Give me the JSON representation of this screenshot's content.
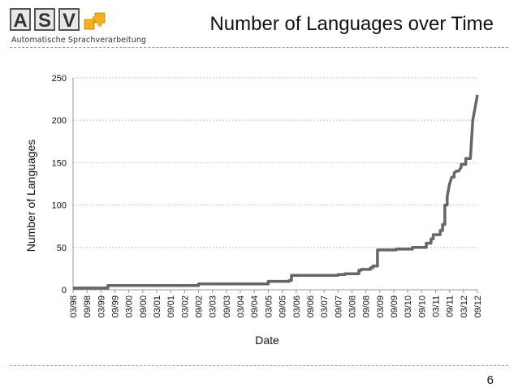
{
  "slide": {
    "title": "Number of Languages over Time",
    "page_number": "6",
    "logo": {
      "letters": [
        "A",
        "S",
        "V"
      ],
      "subtitle": "Automatische Sprachverarbeitung",
      "accent_color": "#f2b21f"
    }
  },
  "chart_data": {
    "type": "line",
    "title": "",
    "xlabel": "Date",
    "ylabel": "Number of Languages",
    "ylim": [
      0,
      250
    ],
    "y_ticks": [
      0,
      50,
      100,
      150,
      200,
      250
    ],
    "grid": true,
    "legend": "none",
    "line_color": "#666666",
    "x_tick_labels": [
      "03/98",
      "09/98",
      "03/99",
      "09/99",
      "03/00",
      "09/00",
      "03/01",
      "09/01",
      "03/02",
      "09/02",
      "03/03",
      "09/03",
      "03/04",
      "09/04",
      "03/05",
      "09/05",
      "03/06",
      "09/06",
      "03/07",
      "09/07",
      "03/08",
      "09/08",
      "03/09",
      "09/09",
      "03/10",
      "09/10",
      "03/11",
      "09/11",
      "03/12",
      "09/12"
    ],
    "series": [
      {
        "x": [
          "03/98",
          "06/99",
          "06/99",
          "09/02",
          "09/02",
          "03/05",
          "03/05",
          "12/05",
          "12/05",
          "01/06",
          "01/06",
          "09/07",
          "09/07",
          "12/07",
          "12/07",
          "06/08",
          "06/08",
          "07/08",
          "07/08",
          "11/08",
          "11/08",
          "12/08",
          "12/08",
          "02/09",
          "02/09",
          "10/09",
          "10/09",
          "05/10",
          "05/10",
          "07/10",
          "07/10",
          "11/10",
          "11/10",
          "01/11",
          "01/11",
          "02/11",
          "02/11",
          "05/11",
          "05/11",
          "06/11",
          "06/11",
          "07/11",
          "07/11",
          "08/11",
          "08/11",
          "09/11",
          "10/11",
          "11/11",
          "11/11",
          "12/11",
          "01/12",
          "02/12",
          "02/12",
          "04/12",
          "04/12",
          "06/12",
          "07/12",
          "09/12"
        ],
        "y": [
          2,
          2,
          5,
          5,
          7,
          7,
          10,
          10,
          11,
          11,
          17,
          17,
          18,
          18,
          19,
          19,
          23,
          23,
          24,
          24,
          26,
          26,
          28,
          28,
          47,
          47,
          48,
          48,
          50,
          50,
          50,
          50,
          55,
          55,
          60,
          60,
          65,
          65,
          70,
          70,
          77,
          77,
          100,
          100,
          110,
          125,
          133,
          133,
          138,
          140,
          140,
          145,
          148,
          148,
          155,
          155,
          200,
          230
        ]
      }
    ]
  }
}
